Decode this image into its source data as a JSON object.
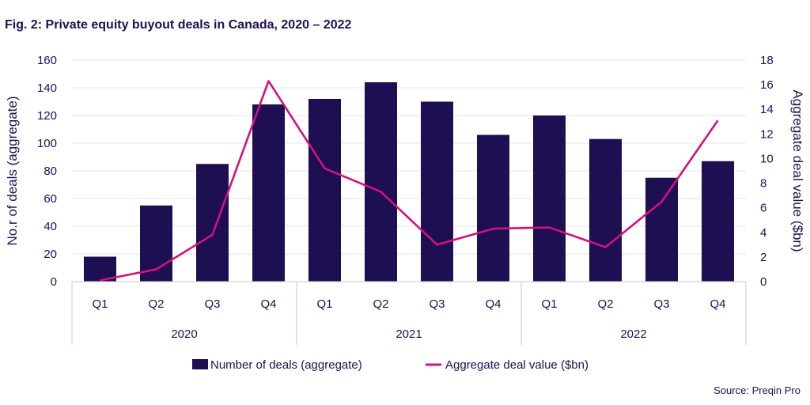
{
  "colors": {
    "bars": "#1e0f52",
    "line": "#d0127f",
    "text": "#1e0f52"
  },
  "source": "Source: Preqin Pro",
  "chart_data": {
    "type": "bar",
    "title": "Fig. 2: Private equity buyout deals in Canada, 2020 – 2022",
    "categories": [
      "Q1",
      "Q2",
      "Q3",
      "Q4",
      "Q1",
      "Q2",
      "Q3",
      "Q4",
      "Q1",
      "Q2",
      "Q3",
      "Q4"
    ],
    "groups": [
      {
        "label": "2020",
        "count": 4
      },
      {
        "label": "2021",
        "count": 4
      },
      {
        "label": "2022",
        "count": 4
      }
    ],
    "series": [
      {
        "name": "Number of deals (aggregate)",
        "type": "bar",
        "axis": "left",
        "values": [
          18,
          55,
          85,
          128,
          132,
          144,
          130,
          106,
          120,
          103,
          75,
          87
        ]
      },
      {
        "name": "Aggregate deal value ($bn)",
        "type": "line",
        "axis": "right",
        "values": [
          0.1,
          1.0,
          3.8,
          16.3,
          9.2,
          7.3,
          3.0,
          4.3,
          4.4,
          2.8,
          6.5,
          13.1
        ]
      }
    ],
    "ylabel": "No.r of deals (aggregate)",
    "y2label": "Aggregate deal value ($bn)",
    "ylim": [
      0,
      160
    ],
    "yticks": [
      "0",
      "20",
      "40",
      "60",
      "80",
      "100",
      "120",
      "140",
      "160"
    ],
    "y2lim": [
      0,
      18
    ],
    "y2ticks": [
      "0",
      "2",
      "4",
      "6",
      "8",
      "10",
      "12",
      "14",
      "16",
      "18"
    ],
    "grid": true,
    "legend_position": "bottom"
  }
}
